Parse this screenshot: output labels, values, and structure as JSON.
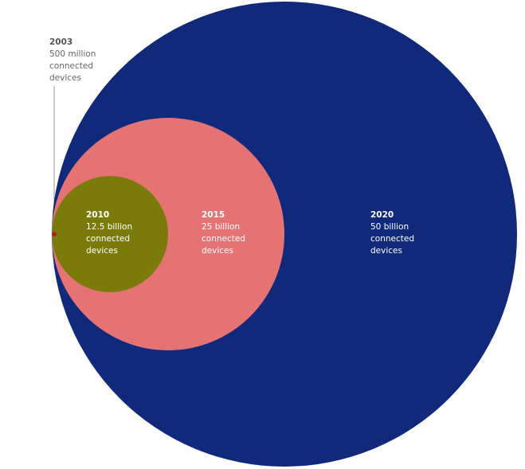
{
  "chart_data": {
    "type": "nested-circles",
    "categories": [
      "2003",
      "2010",
      "2015",
      "2020"
    ],
    "values": [
      0.5,
      12.5,
      25,
      50
    ],
    "value_labels": [
      "500 million",
      "12.5 billion",
      "25 billion",
      "50 billion"
    ],
    "label_suffix": "connected devices",
    "colors": [
      "#b3201c",
      "#7b7b0c",
      "#e67373",
      "#10297a"
    ]
  }
}
